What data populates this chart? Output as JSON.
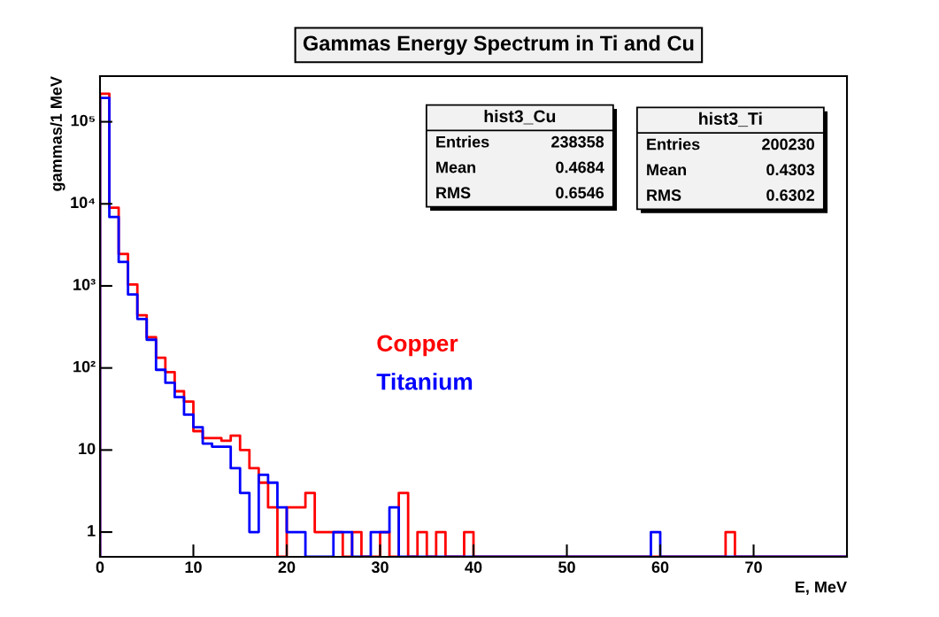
{
  "chart_data": {
    "type": "histogram",
    "title": "Gammas Energy Spectrum in Ti and Cu",
    "xlabel": "E, MeV",
    "ylabel": "gammas/1 MeV",
    "bins": [
      0,
      1,
      2,
      3,
      4,
      5,
      6,
      7,
      8,
      9,
      10,
      11,
      12,
      13,
      14,
      15,
      16,
      17,
      18,
      19,
      20,
      21,
      22,
      23,
      24,
      25,
      26,
      27,
      28,
      29,
      30,
      31,
      32,
      33,
      34,
      35,
      36,
      37,
      38,
      39,
      40,
      41,
      42,
      43,
      44,
      45,
      46,
      47,
      48,
      49,
      50,
      51,
      52,
      53,
      54,
      55,
      56,
      57,
      58,
      59,
      60,
      61,
      62,
      63,
      64,
      65,
      66,
      67,
      68,
      69,
      70,
      71,
      72,
      73,
      74,
      75,
      76,
      77,
      78,
      79,
      80
    ],
    "series": [
      {
        "name": "Copper",
        "color": "#ff0000",
        "values": [
          220000,
          9000,
          2450,
          1040,
          440,
          237,
          133,
          89,
          52,
          39,
          17,
          14,
          14,
          13,
          15,
          10,
          6,
          4,
          2,
          null,
          2,
          2,
          3,
          1,
          1,
          1,
          null,
          1,
          null,
          null,
          1,
          null,
          3,
          null,
          1,
          null,
          1,
          null,
          null,
          1,
          null,
          null,
          null,
          null,
          null,
          null,
          null,
          null,
          null,
          null,
          null,
          null,
          null,
          null,
          null,
          null,
          null,
          null,
          null,
          null,
          null,
          null,
          null,
          null,
          null,
          null,
          null,
          1,
          null,
          null,
          null,
          null,
          null,
          null,
          null,
          null,
          null,
          null,
          null,
          null
        ]
      },
      {
        "name": "Titanium",
        "color": "#0000ff",
        "values": [
          195000,
          6900,
          1960,
          785,
          395,
          221,
          95,
          66,
          44,
          27,
          19,
          12,
          11,
          11,
          6,
          3,
          1,
          5,
          4,
          2,
          1,
          1,
          null,
          null,
          null,
          1,
          1,
          null,
          null,
          1,
          1,
          2,
          null,
          null,
          null,
          null,
          null,
          null,
          null,
          null,
          null,
          null,
          null,
          null,
          null,
          null,
          null,
          null,
          null,
          null,
          null,
          null,
          null,
          null,
          null,
          null,
          null,
          null,
          null,
          1,
          null,
          null,
          null,
          null,
          null,
          null,
          null,
          null,
          null,
          null,
          null,
          null,
          null,
          null,
          null,
          null,
          null,
          null,
          null,
          null
        ]
      }
    ],
    "log": "y",
    "xlim": [
      0,
      80
    ],
    "ylim": [
      0.5,
      360000
    ],
    "xticks": [
      0,
      10,
      20,
      30,
      40,
      50,
      60,
      70
    ],
    "yticks": [
      1,
      10,
      {
        "value": 100,
        "label": "10²"
      },
      {
        "value": 1000,
        "label": "10³"
      },
      {
        "value": 10000,
        "label": "10⁴"
      },
      {
        "value": 100000,
        "label": "10⁵"
      }
    ],
    "annotations": [
      "hist3_Cu",
      "Entries",
      "238358",
      "Mean",
      "0.4684",
      "RMS",
      "0.6546",
      "hist3_Ti",
      "Entries",
      "200230",
      "Mean",
      "0.4303",
      "RMS",
      "0.6302"
    ],
    "grid": false
  }
}
